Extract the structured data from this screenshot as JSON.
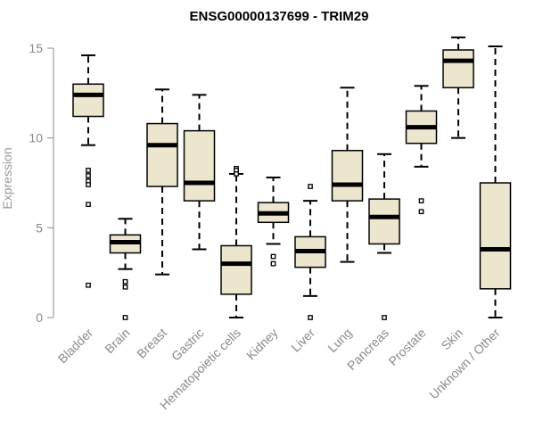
{
  "colors": {
    "box_fill": "#ede6cf",
    "stroke": "#000000",
    "axis": "#8a8a8a",
    "text": "#8a8a8a"
  },
  "chart_data": {
    "type": "boxplot",
    "title": "ENSG00000137699 - TRIM29",
    "xlabel": "",
    "ylabel": "Expression",
    "ylim": [
      0,
      15
    ],
    "yticks": [
      0,
      5,
      10,
      15
    ],
    "categories": [
      "Bladder",
      "Brain",
      "Breast",
      "Gastric",
      "Hematopoietic cells",
      "Kidney",
      "Liver",
      "Lung",
      "Pancreas",
      "Prostate",
      "Skin",
      "Unknown / Other"
    ],
    "boxes": [
      {
        "name": "Bladder",
        "whisker_low": 9.6,
        "q1": 11.2,
        "median": 12.4,
        "q3": 13.0,
        "whisker_high": 14.6,
        "outliers": [
          8.2,
          7.9,
          7.6,
          7.4,
          6.3,
          1.8
        ]
      },
      {
        "name": "Brain",
        "whisker_low": 2.7,
        "q1": 3.6,
        "median": 4.2,
        "q3": 4.6,
        "whisker_high": 5.5,
        "outliers": [
          2.0,
          1.7,
          0.0
        ]
      },
      {
        "name": "Breast",
        "whisker_low": 2.4,
        "q1": 7.3,
        "median": 9.6,
        "q3": 10.8,
        "whisker_high": 12.7,
        "outliers": []
      },
      {
        "name": "Gastric",
        "whisker_low": 3.8,
        "q1": 6.5,
        "median": 7.5,
        "q3": 10.4,
        "whisker_high": 12.4,
        "outliers": []
      },
      {
        "name": "Hematopoietic cells",
        "whisker_low": 0.0,
        "q1": 1.3,
        "median": 3.0,
        "q3": 4.0,
        "whisker_high": 8.0,
        "outliers": [
          8.3,
          8.2,
          8.0
        ]
      },
      {
        "name": "Kidney",
        "whisker_low": 4.1,
        "q1": 5.3,
        "median": 5.8,
        "q3": 6.4,
        "whisker_high": 7.8,
        "outliers": [
          3.4,
          3.0
        ]
      },
      {
        "name": "Liver",
        "whisker_low": 1.2,
        "q1": 2.8,
        "median": 3.7,
        "q3": 4.5,
        "whisker_high": 6.5,
        "outliers": [
          7.3,
          0.0
        ]
      },
      {
        "name": "Lung",
        "whisker_low": 3.1,
        "q1": 6.5,
        "median": 7.4,
        "q3": 9.3,
        "whisker_high": 12.8,
        "outliers": []
      },
      {
        "name": "Pancreas",
        "whisker_low": 3.6,
        "q1": 4.1,
        "median": 5.6,
        "q3": 6.6,
        "whisker_high": 9.1,
        "outliers": [
          0.0
        ]
      },
      {
        "name": "Prostate",
        "whisker_low": 8.4,
        "q1": 9.7,
        "median": 10.6,
        "q3": 11.5,
        "whisker_high": 12.9,
        "outliers": [
          6.5,
          5.9
        ]
      },
      {
        "name": "Skin",
        "whisker_low": 10.0,
        "q1": 12.8,
        "median": 14.3,
        "q3": 14.9,
        "whisker_high": 15.6,
        "outliers": []
      },
      {
        "name": "Unknown / Other",
        "whisker_low": 0.0,
        "q1": 1.6,
        "median": 3.8,
        "q3": 7.5,
        "whisker_high": 15.1,
        "outliers": []
      }
    ]
  }
}
